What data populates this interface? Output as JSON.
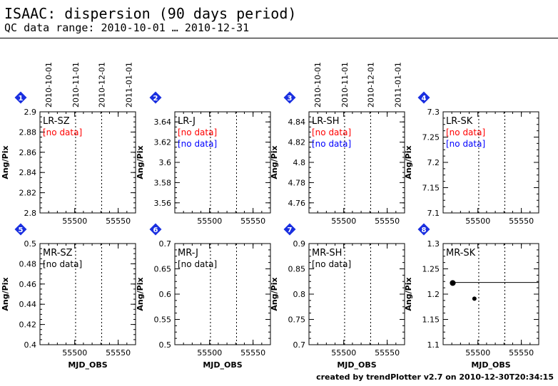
{
  "header": {
    "title": "ISAAC: dispersion (90 days period)",
    "subtitle": "QC data range: 2010-10-01 … 2010-12-31"
  },
  "footer": {
    "credit": "created by trendPlotter v2.7 on 2010-12-30T20:34:15"
  },
  "colors": {
    "badge": "#1a2fe0",
    "nodata_primary": "#ff0000",
    "nodata_secondary": "#0000ff",
    "nodata_black": "#000000",
    "data": "#000000"
  },
  "chart_data": [
    {
      "type": "scatter",
      "index": "1",
      "label": "LR-SZ",
      "ylabel": "Ang/Pix",
      "xlabel": "",
      "xlim": [
        55460,
        55570
      ],
      "ylim": [
        2.8,
        2.9
      ],
      "yticks": [
        "2.8",
        "2.82",
        "2.84",
        "2.86",
        "2.88",
        "2.9"
      ],
      "ytick_values": [
        2.8,
        2.82,
        2.84,
        2.86,
        2.88,
        2.9
      ],
      "xticks": [
        "55500",
        "55550"
      ],
      "xtick_values": [
        55500,
        55550
      ],
      "date_ticks": [
        "2010-10-01",
        "2010-11-01",
        "2010-12-01",
        "2011-01-01"
      ],
      "date_tick_values": [
        55470,
        55501,
        55531,
        55562
      ],
      "nodata": [
        {
          "text": "[no data]",
          "color": "red"
        }
      ],
      "points": [],
      "reference_line": null
    },
    {
      "type": "scatter",
      "index": "2",
      "label": "LR-J",
      "ylabel": "Ang/Pix",
      "xlabel": "",
      "xlim": [
        55460,
        55570
      ],
      "ylim": [
        3.55,
        3.65
      ],
      "yticks": [
        "3.56",
        "3.58",
        "3.6",
        "3.62",
        "3.64"
      ],
      "ytick_values": [
        3.56,
        3.58,
        3.6,
        3.62,
        3.64
      ],
      "xticks": [
        "55500",
        "55550"
      ],
      "xtick_values": [
        55500,
        55550
      ],
      "date_ticks": [],
      "date_tick_values": [],
      "nodata": [
        {
          "text": "[no data]",
          "color": "red"
        },
        {
          "text": "[no data]",
          "color": "blue"
        }
      ],
      "points": [],
      "reference_line": null
    },
    {
      "type": "scatter",
      "index": "3",
      "label": "LR-SH",
      "ylabel": "Ang/Pix",
      "xlabel": "",
      "xlim": [
        55460,
        55570
      ],
      "ylim": [
        4.75,
        4.85
      ],
      "yticks": [
        "4.76",
        "4.78",
        "4.8",
        "4.82",
        "4.84"
      ],
      "ytick_values": [
        4.76,
        4.78,
        4.8,
        4.82,
        4.84
      ],
      "xticks": [
        "55500",
        "55550"
      ],
      "xtick_values": [
        55500,
        55550
      ],
      "date_ticks": [
        "2010-10-01",
        "2010-11-01",
        "2010-12-01",
        "2011-01-01"
      ],
      "date_tick_values": [
        55470,
        55501,
        55531,
        55562
      ],
      "nodata": [
        {
          "text": "[no data]",
          "color": "red"
        },
        {
          "text": "[no data]",
          "color": "blue"
        }
      ],
      "points": [],
      "reference_line": null
    },
    {
      "type": "scatter",
      "index": "4",
      "label": "LR-SK",
      "ylabel": "Ang/Pix",
      "xlabel": "",
      "xlim": [
        55460,
        55570
      ],
      "ylim": [
        7.1,
        7.3
      ],
      "yticks": [
        "7.1",
        "7.15",
        "7.2",
        "7.25",
        "7.3"
      ],
      "ytick_values": [
        7.1,
        7.15,
        7.2,
        7.25,
        7.3
      ],
      "xticks": [
        "55500",
        "55550"
      ],
      "xtick_values": [
        55500,
        55550
      ],
      "date_ticks": [],
      "date_tick_values": [],
      "nodata": [
        {
          "text": "[no data]",
          "color": "red"
        },
        {
          "text": "[no data]",
          "color": "blue"
        }
      ],
      "points": [],
      "reference_line": null
    },
    {
      "type": "scatter",
      "index": "5",
      "label": "MR-SZ",
      "ylabel": "Ang/Pix",
      "xlabel": "MJD_OBS",
      "xlim": [
        55460,
        55570
      ],
      "ylim": [
        0.4,
        0.5
      ],
      "yticks": [
        "0.4",
        "0.42",
        "0.44",
        "0.46",
        "0.48",
        "0.5"
      ],
      "ytick_values": [
        0.4,
        0.42,
        0.44,
        0.46,
        0.48,
        0.5
      ],
      "xticks": [
        "55500",
        "55550"
      ],
      "xtick_values": [
        55500,
        55550
      ],
      "date_ticks": [],
      "date_tick_values": [],
      "nodata": [
        {
          "text": "[no data]",
          "color": "black"
        }
      ],
      "points": [],
      "reference_line": null
    },
    {
      "type": "scatter",
      "index": "6",
      "label": "MR-J",
      "ylabel": "Ang/Pix",
      "xlabel": "MJD_OBS",
      "xlim": [
        55460,
        55570
      ],
      "ylim": [
        0.5,
        0.7
      ],
      "yticks": [
        "0.5",
        "0.55",
        "0.6",
        "0.65",
        "0.7"
      ],
      "ytick_values": [
        0.5,
        0.55,
        0.6,
        0.65,
        0.7
      ],
      "xticks": [
        "55500",
        "55550"
      ],
      "xtick_values": [
        55500,
        55550
      ],
      "date_ticks": [],
      "date_tick_values": [],
      "nodata": [
        {
          "text": "[no data]",
          "color": "black"
        }
      ],
      "points": [],
      "reference_line": null
    },
    {
      "type": "scatter",
      "index": "7",
      "label": "MR-SH",
      "ylabel": "Ang/Pix",
      "xlabel": "MJD_OBS",
      "xlim": [
        55460,
        55570
      ],
      "ylim": [
        0.7,
        0.9
      ],
      "yticks": [
        "0.7",
        "0.75",
        "0.8",
        "0.85",
        "0.9"
      ],
      "ytick_values": [
        0.7,
        0.75,
        0.8,
        0.85,
        0.9
      ],
      "xticks": [
        "55500",
        "55550"
      ],
      "xtick_values": [
        55500,
        55550
      ],
      "date_ticks": [],
      "date_tick_values": [],
      "nodata": [
        {
          "text": "[no data]",
          "color": "black"
        }
      ],
      "points": [],
      "reference_line": null
    },
    {
      "type": "scatter",
      "index": "8",
      "label": "MR-SK",
      "ylabel": "Ang/Pix",
      "xlabel": "MJD_OBS",
      "xlim": [
        55460,
        55570
      ],
      "ylim": [
        1.1,
        1.3
      ],
      "yticks": [
        "1.1",
        "1.15",
        "1.2",
        "1.25",
        "1.3"
      ],
      "ytick_values": [
        1.1,
        1.15,
        1.2,
        1.25,
        1.3
      ],
      "xticks": [
        "55500",
        "55550"
      ],
      "xtick_values": [
        55500,
        55550
      ],
      "date_ticks": [],
      "date_tick_values": [],
      "nodata": [],
      "points": [
        {
          "x": 55471,
          "y": 1.222,
          "size": "large"
        },
        {
          "x": 55472,
          "y": 1.222,
          "size": "small"
        },
        {
          "x": 55496,
          "y": 1.191,
          "size": "small"
        }
      ],
      "reference_line": {
        "y": 1.223,
        "x_from": 55471,
        "x_to": 55570
      }
    }
  ]
}
